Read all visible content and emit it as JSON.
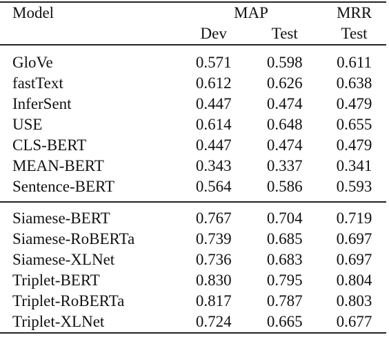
{
  "table": {
    "header": {
      "model_label": "Model",
      "group_map": "MAP",
      "group_mrr": "MRR",
      "sub_dev": "Dev",
      "sub_test": "Test",
      "sub_mrr_test": "Test"
    },
    "groups": [
      {
        "rows": [
          {
            "model": "GloVe",
            "map_dev": "0.571",
            "map_test": "0.598",
            "mrr_test": "0.611",
            "bold": false
          },
          {
            "model": "fastText",
            "map_dev": "0.612",
            "map_test": "0.626",
            "mrr_test": "0.638",
            "bold": false
          },
          {
            "model": "InferSent",
            "map_dev": "0.447",
            "map_test": "0.474",
            "mrr_test": "0.479",
            "bold": false
          },
          {
            "model": "USE",
            "map_dev": "0.614",
            "map_test": "0.648",
            "mrr_test": "0.655",
            "bold": true
          },
          {
            "model": "CLS-BERT",
            "map_dev": "0.447",
            "map_test": "0.474",
            "mrr_test": "0.479",
            "bold": false
          },
          {
            "model": "MEAN-BERT",
            "map_dev": "0.343",
            "map_test": "0.337",
            "mrr_test": "0.341",
            "bold": false
          },
          {
            "model": "Sentence-BERT",
            "map_dev": "0.564",
            "map_test": "0.586",
            "mrr_test": "0.593",
            "bold": false
          }
        ]
      },
      {
        "rows": [
          {
            "model": "Siamese-BERT",
            "map_dev": "0.767",
            "map_test": "0.704",
            "mrr_test": "0.719",
            "bold": false
          },
          {
            "model": "Siamese-RoBERTa",
            "map_dev": "0.739",
            "map_test": "0.685",
            "mrr_test": "0.697",
            "bold": false
          },
          {
            "model": "Siamese-XLNet",
            "map_dev": "0.736",
            "map_test": "0.683",
            "mrr_test": "0.697",
            "bold": false
          },
          {
            "model": "Triplet-BERT",
            "map_dev": "0.830",
            "map_test": "0.795",
            "mrr_test": "0.804",
            "bold": true
          },
          {
            "model": "Triplet-RoBERTa",
            "map_dev": "0.817",
            "map_test": "0.787",
            "mrr_test": "0.803",
            "bold": false
          },
          {
            "model": "Triplet-XLNet",
            "map_dev": "0.724",
            "map_test": "0.665",
            "mrr_test": "0.677",
            "bold": false
          }
        ]
      }
    ]
  }
}
